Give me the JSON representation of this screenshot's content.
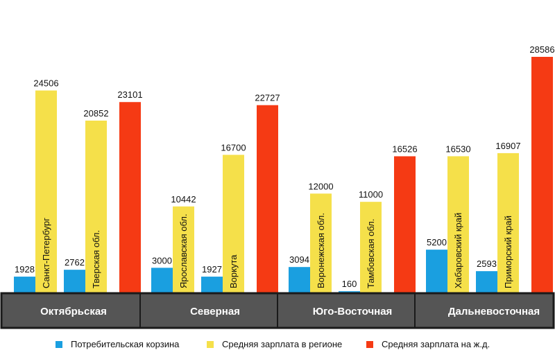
{
  "chart_data": {
    "type": "bar",
    "ylim": [
      0,
      30000
    ],
    "grid": false,
    "legend_position": "bottom",
    "groups": [
      {
        "region": "Октябрьская",
        "bars": [
          {
            "series": "basket",
            "value": 1928
          },
          {
            "series": "regional",
            "value": 24506,
            "label": "Санкт-Петербург"
          },
          {
            "series": "basket",
            "value": 2762
          },
          {
            "series": "regional",
            "value": 20852,
            "label": "Тверская обл."
          },
          {
            "series": "railway",
            "value": 23101
          }
        ]
      },
      {
        "region": "Северная",
        "bars": [
          {
            "series": "basket",
            "value": 3000
          },
          {
            "series": "regional",
            "value": 10442,
            "label": "Ярославская обл."
          },
          {
            "series": "basket",
            "value": 1927
          },
          {
            "series": "regional",
            "value": 16700,
            "label": "Воркута"
          },
          {
            "series": "railway",
            "value": 22727
          }
        ]
      },
      {
        "region": "Юго-Восточная",
        "bars": [
          {
            "series": "basket",
            "value": 3094
          },
          {
            "series": "regional",
            "value": 12000,
            "label": "Воронежская обл."
          },
          {
            "series": "basket",
            "value": 160
          },
          {
            "series": "regional",
            "value": 11000,
            "label": "Тамбовская обл."
          },
          {
            "series": "railway",
            "value": 16526
          }
        ]
      },
      {
        "region": "Дальневосточная",
        "bars": [
          {
            "series": "basket",
            "value": 5200
          },
          {
            "series": "regional",
            "value": 16530,
            "label": "Хабаровский край"
          },
          {
            "series": "basket",
            "value": 2593
          },
          {
            "series": "regional",
            "value": 16907,
            "label": "Приморский край"
          },
          {
            "series": "railway",
            "value": 28586
          }
        ]
      }
    ],
    "series": [
      {
        "key": "basket",
        "name": "Потребительская корзина",
        "color": "#1a9fe0"
      },
      {
        "key": "regional",
        "name": "Средняя зарплата в регионе",
        "color": "#f5e04a"
      },
      {
        "key": "railway",
        "name": "Средняя зарплата на ж.д.",
        "color": "#f53a14"
      }
    ]
  },
  "colors": {
    "region_band_fill": "#555555",
    "region_band_border": "#1a1a1a",
    "region_text": "#ffffff"
  }
}
